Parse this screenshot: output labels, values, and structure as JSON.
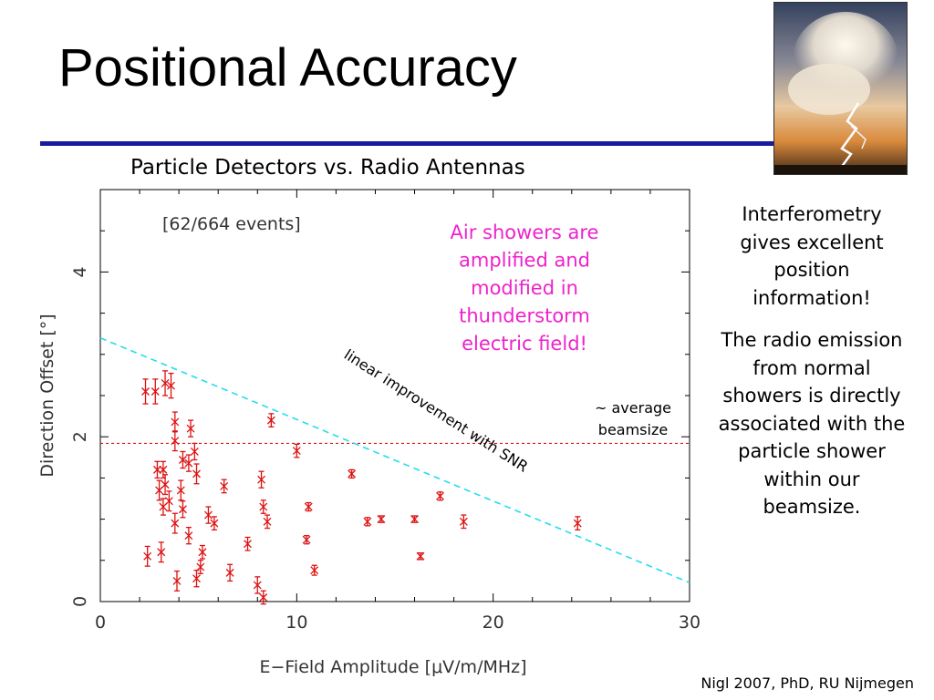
{
  "slide": {
    "title": "Positional Accuracy",
    "chart_heading": "Particle Detectors vs. Radio Antennas",
    "side_text_1": "Interferometry gives excellent position information!",
    "side_text_2": "The radio emission from normal showers is directly associated with the particle shower within our beamsize.",
    "citation": "Nigl 2007, PhD, RU Nijmegen"
  },
  "colors": {
    "title_rule": "#1a1aa0",
    "points": "#dd1111",
    "fit_line": "#22ddee",
    "beamsize_line": "#dd1111",
    "annotation_magenta": "#ee22cc"
  },
  "chart_data": {
    "type": "scatter",
    "title": "",
    "xlabel": "E−Field Amplitude [μV/m/MHz]",
    "ylabel": "Direction Offset [°]",
    "xlim": [
      0,
      30
    ],
    "ylim": [
      0,
      5
    ],
    "x_ticks": [
      "0",
      "10",
      "20",
      "30"
    ],
    "y_ticks": [
      "0",
      "2",
      "4"
    ],
    "grid": false,
    "events_label": "[62/664 events]",
    "annotation": "Air showers are amplified and modified in thunderstorm electric field!",
    "fit_line": {
      "label": "linear improvement with SNR",
      "from": [
        0,
        3.2
      ],
      "to": [
        30,
        0.23
      ]
    },
    "beamsize_line": {
      "label": "~ average beamsize",
      "y": 1.92
    },
    "points": [
      {
        "x": 2.3,
        "y": 2.55,
        "err": 0.15
      },
      {
        "x": 2.8,
        "y": 2.55,
        "err": 0.15
      },
      {
        "x": 3.3,
        "y": 2.65,
        "err": 0.15
      },
      {
        "x": 3.6,
        "y": 2.62,
        "err": 0.15
      },
      {
        "x": 3.8,
        "y": 2.18,
        "err": 0.12
      },
      {
        "x": 4.6,
        "y": 2.1,
        "err": 0.1
      },
      {
        "x": 3.8,
        "y": 1.95,
        "err": 0.12
      },
      {
        "x": 4.8,
        "y": 1.82,
        "err": 0.1
      },
      {
        "x": 4.2,
        "y": 1.72,
        "err": 0.1
      },
      {
        "x": 4.5,
        "y": 1.68,
        "err": 0.1
      },
      {
        "x": 4.9,
        "y": 1.55,
        "err": 0.12
      },
      {
        "x": 2.9,
        "y": 1.6,
        "err": 0.1
      },
      {
        "x": 3.2,
        "y": 1.6,
        "err": 0.1
      },
      {
        "x": 3.0,
        "y": 1.35,
        "err": 0.12
      },
      {
        "x": 3.3,
        "y": 1.42,
        "err": 0.12
      },
      {
        "x": 3.5,
        "y": 1.22,
        "err": 0.12
      },
      {
        "x": 3.2,
        "y": 1.15,
        "err": 0.1
      },
      {
        "x": 4.1,
        "y": 1.35,
        "err": 0.12
      },
      {
        "x": 4.2,
        "y": 1.12,
        "err": 0.1
      },
      {
        "x": 3.8,
        "y": 0.95,
        "err": 0.12
      },
      {
        "x": 4.5,
        "y": 0.8,
        "err": 0.1
      },
      {
        "x": 5.5,
        "y": 1.05,
        "err": 0.1
      },
      {
        "x": 5.8,
        "y": 0.95,
        "err": 0.08
      },
      {
        "x": 6.3,
        "y": 1.4,
        "err": 0.08
      },
      {
        "x": 8.2,
        "y": 1.48,
        "err": 0.1
      },
      {
        "x": 8.3,
        "y": 1.15,
        "err": 0.08
      },
      {
        "x": 8.5,
        "y": 0.97,
        "err": 0.08
      },
      {
        "x": 8.7,
        "y": 2.2,
        "err": 0.08
      },
      {
        "x": 10.0,
        "y": 1.83,
        "err": 0.08
      },
      {
        "x": 10.6,
        "y": 1.15,
        "err": 0.05
      },
      {
        "x": 10.5,
        "y": 0.75,
        "err": 0.05
      },
      {
        "x": 10.9,
        "y": 0.38,
        "err": 0.06
      },
      {
        "x": 12.8,
        "y": 1.55,
        "err": 0.05
      },
      {
        "x": 13.6,
        "y": 0.97,
        "err": 0.05
      },
      {
        "x": 14.3,
        "y": 1.0,
        "err": 0.04
      },
      {
        "x": 16.0,
        "y": 1.0,
        "err": 0.04
      },
      {
        "x": 16.3,
        "y": 0.55,
        "err": 0.04
      },
      {
        "x": 17.3,
        "y": 1.28,
        "err": 0.05
      },
      {
        "x": 18.5,
        "y": 0.97,
        "err": 0.08
      },
      {
        "x": 24.3,
        "y": 0.95,
        "err": 0.08
      },
      {
        "x": 2.4,
        "y": 0.55,
        "err": 0.12
      },
      {
        "x": 3.1,
        "y": 0.6,
        "err": 0.12
      },
      {
        "x": 3.9,
        "y": 0.25,
        "err": 0.12
      },
      {
        "x": 4.9,
        "y": 0.28,
        "err": 0.1
      },
      {
        "x": 5.1,
        "y": 0.42,
        "err": 0.08
      },
      {
        "x": 5.2,
        "y": 0.6,
        "err": 0.08
      },
      {
        "x": 6.6,
        "y": 0.35,
        "err": 0.1
      },
      {
        "x": 7.5,
        "y": 0.7,
        "err": 0.08
      },
      {
        "x": 8.0,
        "y": 0.2,
        "err": 0.1
      },
      {
        "x": 8.3,
        "y": 0.05,
        "err": 0.08
      }
    ]
  }
}
